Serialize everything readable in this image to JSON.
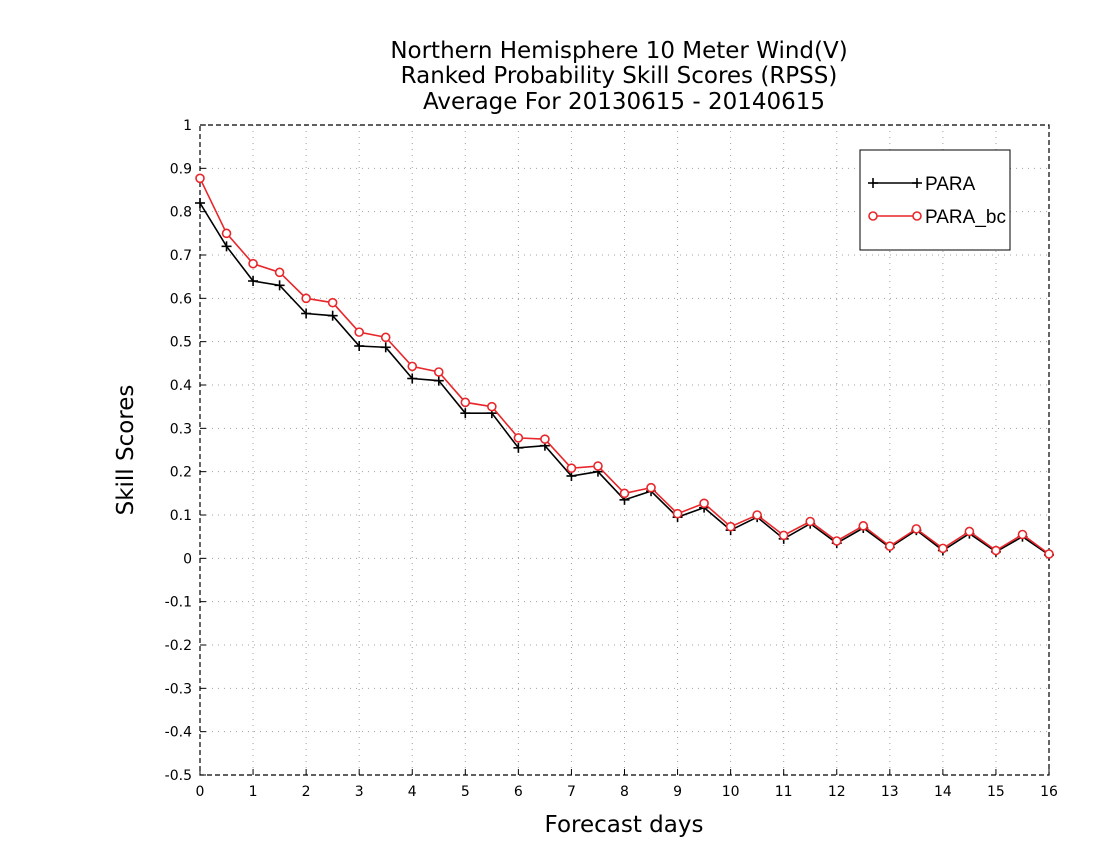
{
  "chart_data": {
    "type": "line",
    "title_lines": [
      "Northern Hemisphere 10 Meter Wind(V)",
      "Ranked Probability Skill Scores (RPSS)",
      "Average For 20130615 - 20140615"
    ],
    "xlabel": "Forecast days",
    "ylabel": "Skill Scores",
    "xlim": [
      0,
      16
    ],
    "ylim": [
      -0.5,
      1
    ],
    "xticks": [
      "0",
      "1",
      "2",
      "3",
      "4",
      "5",
      "6",
      "7",
      "8",
      "9",
      "10",
      "11",
      "12",
      "13",
      "14",
      "15",
      "16"
    ],
    "yticks": [
      "-0.5",
      "-0.4",
      "-0.3",
      "-0.2",
      "-0.1",
      "0",
      "0.1",
      "0.2",
      "0.3",
      "0.4",
      "0.5",
      "0.6",
      "0.7",
      "0.8",
      "0.9",
      "1"
    ],
    "grid": true,
    "legend_position": "top-right",
    "x": [
      0,
      0.5,
      1,
      1.5,
      2,
      2.5,
      3,
      3.5,
      4,
      4.5,
      5,
      5.5,
      6,
      6.5,
      7,
      7.5,
      8,
      8.5,
      9,
      9.5,
      10,
      10.5,
      11,
      11.5,
      12,
      12.5,
      13,
      13.5,
      14,
      14.5,
      15,
      15.5,
      16
    ],
    "series": [
      {
        "name": "PARA",
        "color": "#000000",
        "marker": "plus",
        "values": [
          0.82,
          0.72,
          0.64,
          0.63,
          0.565,
          0.56,
          0.49,
          0.487,
          0.415,
          0.41,
          0.335,
          0.335,
          0.255,
          0.26,
          0.19,
          0.2,
          0.135,
          0.155,
          0.095,
          0.117,
          0.065,
          0.095,
          0.045,
          0.08,
          0.035,
          0.07,
          0.025,
          0.065,
          0.018,
          0.057,
          0.015,
          0.05,
          0.008
        ]
      },
      {
        "name": "PARA_bc",
        "color": "#e8272b",
        "marker": "circle",
        "values": [
          0.877,
          0.75,
          0.68,
          0.66,
          0.6,
          0.59,
          0.522,
          0.51,
          0.443,
          0.43,
          0.36,
          0.35,
          0.278,
          0.275,
          0.208,
          0.213,
          0.15,
          0.163,
          0.103,
          0.127,
          0.073,
          0.1,
          0.053,
          0.085,
          0.04,
          0.075,
          0.028,
          0.068,
          0.023,
          0.062,
          0.018,
          0.055,
          0.01
        ]
      }
    ]
  }
}
